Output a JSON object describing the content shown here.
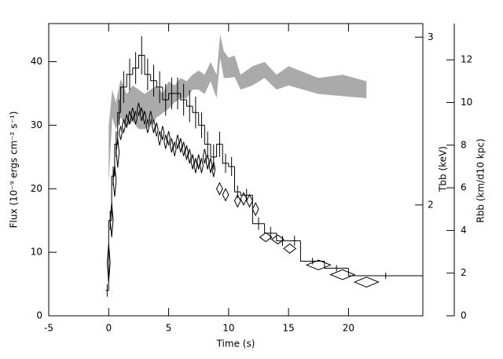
{
  "chart_data": {
    "type": "line",
    "xlabel": "Time (s)",
    "ylabel": "Flux (10⁻⁹ ergs cm⁻² s⁻¹)",
    "y2label": "Tbb (keV)",
    "y3label": "Rbb (km/d10 kpc)",
    "xlim": [
      -5,
      26.2
    ],
    "xticks": [
      -5,
      0,
      5,
      10,
      15,
      20
    ],
    "ylim": [
      0,
      46
    ],
    "yticks": [
      0,
      10,
      20,
      30,
      40
    ],
    "y2lim": [
      1.53,
      3.1
    ],
    "y2ticks": [
      2,
      3
    ],
    "y2log": true,
    "y3lim": [
      0,
      13.7
    ],
    "y3ticks": [
      0,
      2,
      4,
      6,
      8,
      10,
      12
    ],
    "series": [
      {
        "type": "band",
        "axis": "y3",
        "color": "#aaaaaa",
        "x": [
          0,
          0.3,
          0.6,
          1,
          1.5,
          2,
          2.5,
          3,
          3.5,
          4,
          4.5,
          5,
          5.5,
          6,
          6.5,
          7,
          7.5,
          8,
          8.5,
          9,
          9.3,
          9.6,
          10,
          10.5,
          11,
          12,
          13,
          14,
          15,
          17.5,
          19.5,
          21.5
        ],
        "upper": [
          8.9,
          10.6,
          10.0,
          11.1,
          10.4,
          10.8,
          10.6,
          10.4,
          10.6,
          10.8,
          10.4,
          11.0,
          10.8,
          11.15,
          11.0,
          11.3,
          11.5,
          11.3,
          11.9,
          11.3,
          13.2,
          12.4,
          12.1,
          12.2,
          11.3,
          11.7,
          11.9,
          11.3,
          11.7,
          11.15,
          11.3,
          11.0
        ],
        "lower": [
          6.2,
          9.3,
          8.75,
          9.3,
          8.9,
          9.1,
          8.75,
          8.75,
          8.9,
          9.3,
          9.5,
          9.7,
          10.0,
          10.2,
          10.2,
          10.6,
          10.6,
          10.4,
          11.0,
          10.2,
          12.1,
          11.15,
          11.15,
          11.2,
          10.6,
          10.8,
          11.15,
          10.6,
          10.8,
          10.4,
          10.3,
          10.2
        ]
      },
      {
        "type": "step",
        "color": "#000000",
        "bins": [
          -0.25,
          0,
          0.25,
          0.5,
          0.75,
          1,
          1.5,
          2,
          2.5,
          3,
          3.5,
          4,
          4.5,
          5,
          5.5,
          6,
          6.5,
          7,
          7.5,
          8,
          8.5,
          9,
          9.5,
          10,
          10.5,
          11,
          12,
          13,
          14,
          15,
          16,
          18,
          20,
          26.2
        ],
        "values": [
          4,
          15,
          22,
          27,
          32,
          36,
          38,
          39,
          41,
          38,
          37,
          36,
          34,
          35,
          35,
          34,
          33,
          32,
          30,
          27,
          25,
          27,
          24,
          23.5,
          19.5,
          19,
          14.5,
          13,
          11.8,
          11.8,
          8.6,
          7.5,
          6.3
        ],
        "errors": [
          1,
          1.5,
          1.5,
          2,
          2,
          2.5,
          2.5,
          2.5,
          3,
          2.5,
          2.5,
          2.5,
          2.5,
          2.5,
          2.5,
          2.5,
          2.5,
          2.5,
          2,
          2,
          2,
          2,
          1.5,
          1.5,
          1,
          1,
          1,
          1,
          0.8,
          0.8,
          0.5,
          0.5,
          0.5
        ]
      },
      {
        "type": "scatter",
        "axis": "y2",
        "color": "#000000",
        "x": [
          0,
          0.25,
          0.5,
          0.75,
          1,
          1.25,
          1.5,
          1.75,
          2,
          2.25,
          2.5,
          2.75,
          3,
          3.25,
          3.5,
          3.75,
          4,
          4.25,
          4.5,
          4.75,
          5,
          5.25,
          5.5,
          5.75,
          6,
          6.25,
          6.5,
          6.75,
          7,
          7.25,
          7.5,
          7.75,
          8,
          8.25,
          8.5,
          8.75,
          9.25,
          9.75,
          10.75,
          11.25,
          11.75,
          12.25,
          13.1,
          14.1,
          15.1,
          17.5,
          19.5,
          21.5
        ],
        "xerr": [
          0.125,
          0.125,
          0.125,
          0.125,
          0.125,
          0.125,
          0.125,
          0.125,
          0.125,
          0.125,
          0.125,
          0.125,
          0.125,
          0.125,
          0.125,
          0.125,
          0.125,
          0.125,
          0.125,
          0.125,
          0.125,
          0.125,
          0.125,
          0.125,
          0.125,
          0.125,
          0.125,
          0.125,
          0.125,
          0.125,
          0.125,
          0.125,
          0.125,
          0.125,
          0.125,
          0.125,
          0.25,
          0.25,
          0.25,
          0.25,
          0.25,
          0.25,
          0.5,
          0.5,
          0.5,
          1,
          1,
          1
        ],
        "values": [
          1.74,
          1.93,
          2.12,
          2.27,
          2.38,
          2.42,
          2.45,
          2.47,
          2.49,
          2.47,
          2.52,
          2.49,
          2.47,
          2.42,
          2.47,
          2.42,
          2.4,
          2.35,
          2.38,
          2.33,
          2.35,
          2.31,
          2.29,
          2.33,
          2.31,
          2.29,
          2.27,
          2.25,
          2.22,
          2.2,
          2.22,
          2.2,
          2.25,
          2.22,
          2.2,
          2.18,
          2.08,
          2.05,
          2.02,
          2.03,
          2.02,
          1.98,
          1.85,
          1.84,
          1.8,
          1.73,
          1.69,
          1.66
        ],
        "errors": [
          0.08,
          0.08,
          0.08,
          0.08,
          0.04,
          0.04,
          0.04,
          0.04,
          0.04,
          0.04,
          0.04,
          0.04,
          0.04,
          0.04,
          0.04,
          0.04,
          0.04,
          0.04,
          0.04,
          0.04,
          0.04,
          0.04,
          0.04,
          0.04,
          0.04,
          0.04,
          0.04,
          0.04,
          0.04,
          0.04,
          0.04,
          0.04,
          0.04,
          0.04,
          0.04,
          0.04,
          0.03,
          0.03,
          0.03,
          0.03,
          0.03,
          0.03,
          0.02,
          0.02,
          0.02,
          0.02,
          0.02,
          0.02
        ]
      }
    ]
  }
}
